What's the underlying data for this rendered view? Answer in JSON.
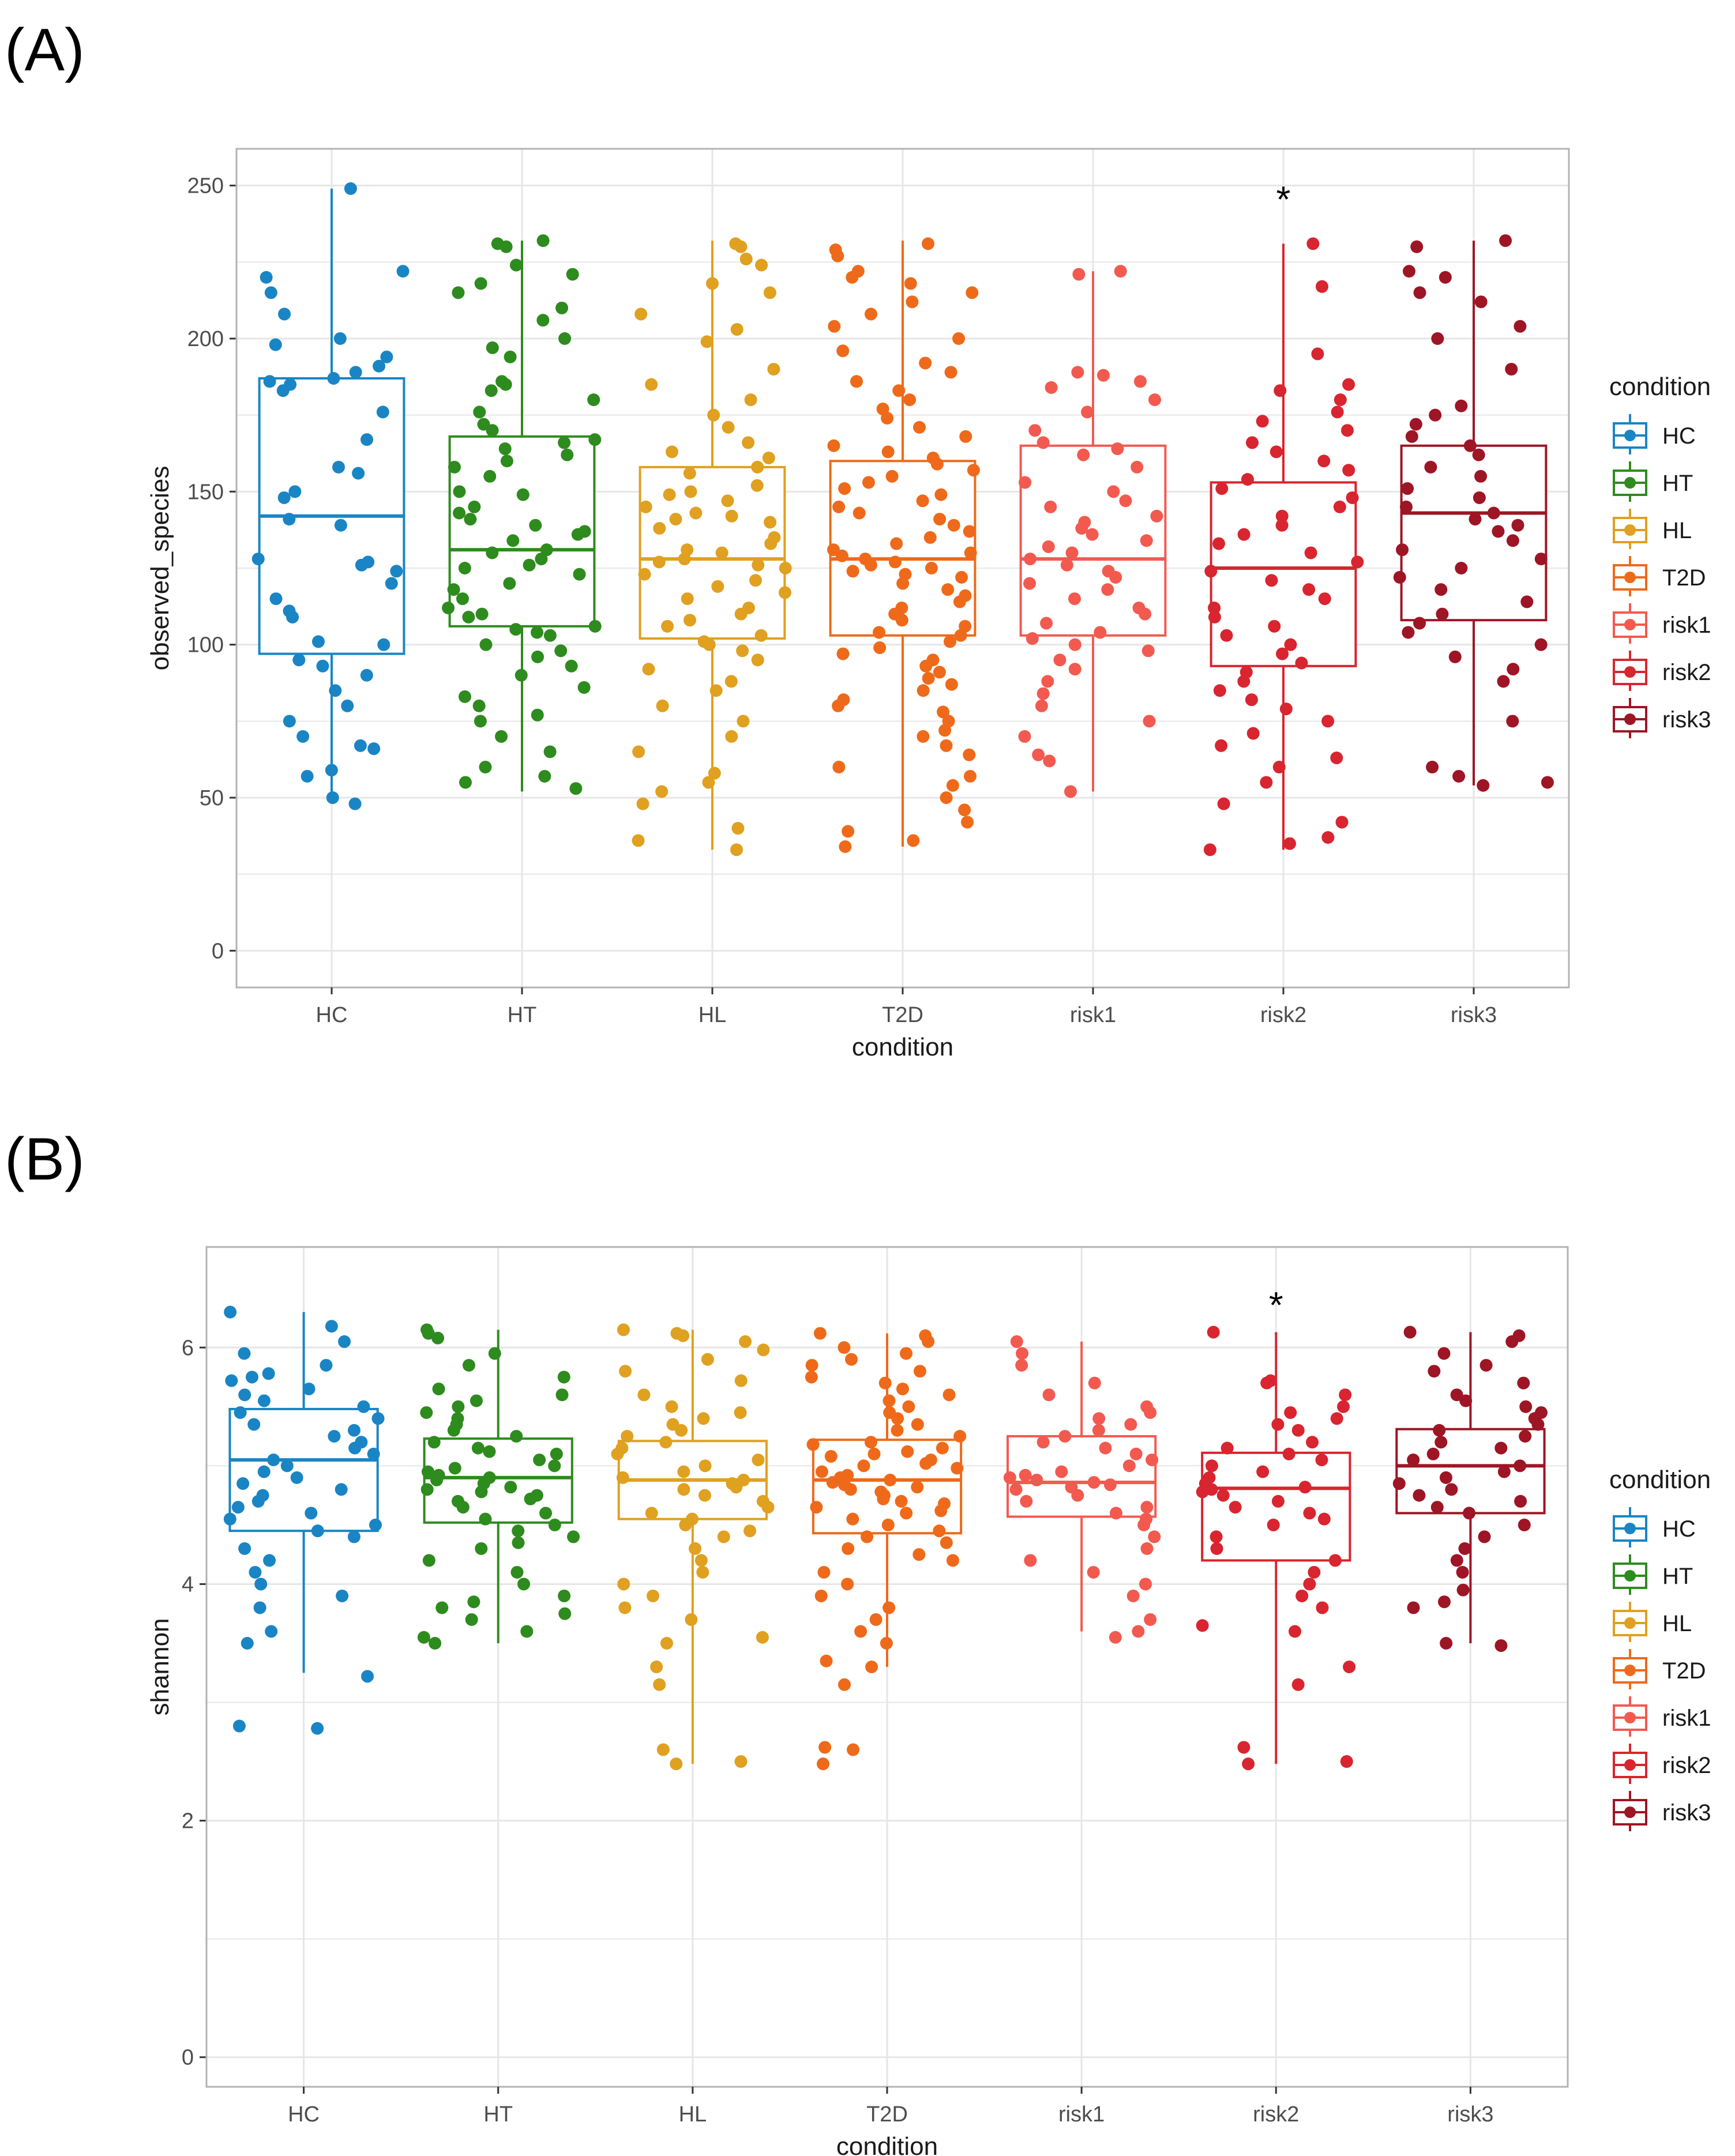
{
  "figure": {
    "panels": [
      "(A)",
      "(B)"
    ]
  },
  "legend": {
    "title": "condition"
  },
  "colors": {
    "HC": "#1a85c4",
    "HT": "#2e8b1e",
    "HL": "#e0a020",
    "T2D": "#ee6a1a",
    "risk1": "#f25a50",
    "risk2": "#d82530",
    "risk3": "#9e1525",
    "grid": "#e6e6e6",
    "panel_border": "#b3b3b3"
  },
  "chart_data": [
    {
      "type": "boxplot",
      "panel": "(A)",
      "xlabel": "condition",
      "ylabel": "observed_species",
      "categories": [
        "HC",
        "HT",
        "HL",
        "T2D",
        "risk1",
        "risk2",
        "risk3"
      ],
      "ylim": [
        -12,
        262
      ],
      "yticks": [
        0,
        50,
        100,
        150,
        200,
        250
      ],
      "grid": true,
      "legend_position": "right",
      "annotations": [
        {
          "category": "risk2",
          "y": 247,
          "text": "*"
        }
      ],
      "series": [
        {
          "name": "HC",
          "min": 48,
          "q1": 97,
          "median": 142,
          "q3": 187,
          "max": 249,
          "points": [
            249,
            222,
            220,
            215,
            208,
            200,
            198,
            194,
            191,
            189,
            187,
            186,
            185,
            183,
            176,
            167,
            158,
            156,
            150,
            148,
            141,
            139,
            128,
            127,
            126,
            124,
            120,
            115,
            111,
            109,
            101,
            100,
            95,
            93,
            90,
            85,
            80,
            75,
            70,
            67,
            66,
            59,
            57,
            50,
            48
          ]
        },
        {
          "name": "HT",
          "min": 52,
          "q1": 106,
          "median": 131,
          "q3": 168,
          "max": 232,
          "points": [
            232,
            231,
            230,
            224,
            221,
            218,
            215,
            210,
            206,
            200,
            197,
            194,
            186,
            185,
            183,
            180,
            176,
            172,
            170,
            167,
            166,
            164,
            162,
            160,
            158,
            155,
            150,
            149,
            145,
            143,
            141,
            139,
            137,
            136,
            134,
            131,
            130,
            128,
            126,
            125,
            123,
            120,
            118,
            115,
            112,
            110,
            109,
            106,
            105,
            104,
            103,
            100,
            98,
            96,
            93,
            90,
            86,
            83,
            80,
            77,
            75,
            70,
            65,
            60,
            57,
            55,
            53
          ]
        },
        {
          "name": "HL",
          "min": 33,
          "q1": 102,
          "median": 128,
          "q3": 158,
          "max": 232,
          "points": [
            231,
            230,
            226,
            224,
            218,
            215,
            208,
            203,
            199,
            190,
            185,
            180,
            175,
            171,
            166,
            163,
            161,
            158,
            156,
            152,
            150,
            149,
            147,
            145,
            143,
            142,
            141,
            140,
            138,
            135,
            133,
            131,
            130,
            128,
            127,
            126,
            125,
            123,
            121,
            119,
            117,
            115,
            112,
            110,
            108,
            106,
            103,
            101,
            100,
            98,
            95,
            92,
            88,
            85,
            80,
            75,
            70,
            65,
            58,
            55,
            52,
            48,
            40,
            36,
            33
          ]
        },
        {
          "name": "T2D",
          "min": 34,
          "q1": 103,
          "median": 128,
          "q3": 160,
          "max": 232,
          "points": [
            231,
            229,
            227,
            222,
            220,
            218,
            215,
            212,
            208,
            204,
            200,
            196,
            192,
            189,
            186,
            183,
            180,
            177,
            174,
            171,
            168,
            165,
            163,
            161,
            159,
            157,
            155,
            153,
            151,
            149,
            147,
            145,
            143,
            141,
            139,
            137,
            135,
            133,
            131,
            130,
            129,
            128,
            127,
            126,
            125,
            124,
            123,
            122,
            120,
            118,
            116,
            114,
            112,
            110,
            108,
            106,
            104,
            103,
            101,
            99,
            97,
            95,
            93,
            91,
            89,
            87,
            85,
            82,
            80,
            78,
            75,
            72,
            70,
            67,
            64,
            60,
            57,
            54,
            50,
            46,
            42,
            39,
            36,
            34
          ]
        },
        {
          "name": "risk1",
          "min": 52,
          "q1": 103,
          "median": 128,
          "q3": 165,
          "max": 222,
          "points": [
            222,
            221,
            189,
            188,
            186,
            184,
            180,
            176,
            170,
            166,
            164,
            162,
            158,
            153,
            150,
            147,
            145,
            142,
            140,
            138,
            136,
            134,
            132,
            130,
            128,
            126,
            124,
            122,
            120,
            118,
            115,
            112,
            110,
            107,
            104,
            102,
            100,
            98,
            95,
            92,
            88,
            84,
            80,
            75,
            70,
            64,
            62,
            52
          ]
        },
        {
          "name": "risk2",
          "min": 33,
          "q1": 93,
          "median": 125,
          "q3": 153,
          "max": 231,
          "points": [
            231,
            217,
            195,
            185,
            183,
            180,
            176,
            173,
            170,
            166,
            163,
            160,
            157,
            154,
            151,
            148,
            145,
            142,
            139,
            136,
            133,
            130,
            127,
            124,
            121,
            118,
            115,
            112,
            109,
            106,
            103,
            100,
            97,
            94,
            91,
            88,
            85,
            82,
            79,
            75,
            71,
            67,
            63,
            60,
            55,
            48,
            42,
            37,
            35,
            33
          ]
        },
        {
          "name": "risk3",
          "min": 54,
          "q1": 108,
          "median": 143,
          "q3": 165,
          "max": 232,
          "points": [
            232,
            230,
            222,
            220,
            215,
            212,
            204,
            200,
            190,
            178,
            175,
            172,
            168,
            165,
            162,
            158,
            155,
            151,
            148,
            145,
            143,
            141,
            139,
            137,
            134,
            131,
            128,
            125,
            122,
            118,
            114,
            110,
            107,
            104,
            100,
            96,
            92,
            88,
            75,
            60,
            57,
            55,
            54
          ]
        }
      ]
    },
    {
      "type": "boxplot",
      "panel": "(B)",
      "xlabel": "condition",
      "ylabel": "shannon",
      "categories": [
        "HC",
        "HT",
        "HL",
        "T2D",
        "risk1",
        "risk2",
        "risk3"
      ],
      "ylim": [
        -0.25,
        6.85
      ],
      "yticks": [
        0,
        2,
        4,
        6
      ],
      "grid": true,
      "legend_position": "right",
      "annotations": [
        {
          "category": "risk2",
          "y": 6.4,
          "text": "*"
        }
      ],
      "series": [
        {
          "name": "HC",
          "min": 3.25,
          "q1": 4.45,
          "median": 5.05,
          "q3": 5.48,
          "max": 6.3,
          "points": [
            6.3,
            6.18,
            6.05,
            5.95,
            5.85,
            5.78,
            5.75,
            5.72,
            5.65,
            5.6,
            5.55,
            5.5,
            5.45,
            5.4,
            5.35,
            5.3,
            5.25,
            5.2,
            5.15,
            5.1,
            5.05,
            5.0,
            4.95,
            4.9,
            4.85,
            4.8,
            4.75,
            4.7,
            4.65,
            4.6,
            4.55,
            4.5,
            4.45,
            4.4,
            4.3,
            4.2,
            4.1,
            4.0,
            3.9,
            3.8,
            3.6,
            3.5,
            3.22,
            2.8,
            2.78
          ]
        },
        {
          "name": "HT",
          "min": 3.5,
          "q1": 4.52,
          "median": 4.9,
          "q3": 5.23,
          "max": 6.15,
          "points": [
            6.15,
            6.12,
            6.08,
            5.95,
            5.85,
            5.75,
            5.65,
            5.6,
            5.55,
            5.5,
            5.45,
            5.4,
            5.35,
            5.3,
            5.25,
            5.2,
            5.15,
            5.12,
            5.1,
            5.05,
            5.0,
            4.98,
            4.95,
            4.92,
            4.9,
            4.88,
            4.85,
            4.82,
            4.8,
            4.78,
            4.75,
            4.72,
            4.7,
            4.65,
            4.6,
            4.55,
            4.5,
            4.45,
            4.4,
            4.35,
            4.3,
            4.2,
            4.1,
            4.0,
            3.9,
            3.85,
            3.8,
            3.75,
            3.7,
            3.6,
            3.55,
            3.5
          ]
        },
        {
          "name": "HL",
          "min": 2.48,
          "q1": 4.55,
          "median": 4.88,
          "q3": 5.21,
          "max": 6.15,
          "points": [
            6.15,
            6.12,
            6.1,
            6.05,
            5.98,
            5.9,
            5.8,
            5.72,
            5.6,
            5.5,
            5.45,
            5.4,
            5.35,
            5.3,
            5.25,
            5.2,
            5.15,
            5.1,
            5.05,
            5.0,
            4.95,
            4.9,
            4.88,
            4.85,
            4.82,
            4.8,
            4.75,
            4.7,
            4.65,
            4.6,
            4.55,
            4.5,
            4.45,
            4.4,
            4.3,
            4.2,
            4.1,
            4.0,
            3.9,
            3.8,
            3.7,
            3.55,
            3.5,
            3.3,
            3.15,
            2.6,
            2.5,
            2.48
          ]
        },
        {
          "name": "T2D",
          "min": 3.3,
          "q1": 4.43,
          "median": 4.88,
          "q3": 5.22,
          "max": 6.12,
          "points": [
            6.12,
            6.1,
            6.05,
            6.0,
            5.95,
            5.9,
            5.85,
            5.8,
            5.75,
            5.7,
            5.65,
            5.6,
            5.55,
            5.5,
            5.45,
            5.4,
            5.35,
            5.3,
            5.25,
            5.2,
            5.18,
            5.15,
            5.12,
            5.1,
            5.08,
            5.05,
            5.02,
            5.0,
            4.98,
            4.95,
            4.92,
            4.9,
            4.88,
            4.86,
            4.84,
            4.82,
            4.8,
            4.78,
            4.75,
            4.72,
            4.7,
            4.68,
            4.65,
            4.62,
            4.6,
            4.55,
            4.5,
            4.45,
            4.4,
            4.35,
            4.3,
            4.25,
            4.2,
            4.1,
            4.0,
            3.9,
            3.8,
            3.7,
            3.6,
            3.5,
            3.35,
            3.3,
            3.15,
            2.62,
            2.6,
            2.48
          ]
        },
        {
          "name": "risk1",
          "min": 3.6,
          "q1": 4.57,
          "median": 4.86,
          "q3": 5.25,
          "max": 6.05,
          "points": [
            6.05,
            5.95,
            5.85,
            5.7,
            5.6,
            5.5,
            5.45,
            5.4,
            5.35,
            5.3,
            5.25,
            5.2,
            5.15,
            5.1,
            5.05,
            5.0,
            4.95,
            4.92,
            4.9,
            4.88,
            4.86,
            4.84,
            4.82,
            4.8,
            4.75,
            4.7,
            4.65,
            4.6,
            4.55,
            4.5,
            4.4,
            4.3,
            4.2,
            4.1,
            4.0,
            3.9,
            3.7,
            3.6,
            3.55
          ]
        },
        {
          "name": "risk2",
          "min": 2.48,
          "q1": 4.2,
          "median": 4.81,
          "q3": 5.11,
          "max": 6.13,
          "points": [
            6.13,
            5.72,
            5.7,
            5.6,
            5.5,
            5.45,
            5.4,
            5.35,
            5.3,
            5.2,
            5.15,
            5.1,
            5.05,
            5.0,
            4.95,
            4.9,
            4.85,
            4.82,
            4.8,
            4.78,
            4.75,
            4.7,
            4.65,
            4.6,
            4.55,
            4.5,
            4.4,
            4.3,
            4.2,
            4.1,
            4.0,
            3.9,
            3.8,
            3.65,
            3.6,
            3.3,
            3.15,
            2.62,
            2.5,
            2.48
          ]
        },
        {
          "name": "risk3",
          "min": 3.5,
          "q1": 4.6,
          "median": 5.0,
          "q3": 5.31,
          "max": 6.13,
          "points": [
            6.13,
            6.1,
            6.05,
            5.95,
            5.85,
            5.8,
            5.7,
            5.6,
            5.55,
            5.5,
            5.45,
            5.4,
            5.35,
            5.3,
            5.25,
            5.2,
            5.15,
            5.1,
            5.05,
            5.0,
            4.95,
            4.9,
            4.85,
            4.8,
            4.75,
            4.7,
            4.65,
            4.6,
            4.5,
            4.4,
            4.3,
            4.2,
            4.1,
            3.95,
            3.85,
            3.8,
            3.5,
            3.48
          ]
        }
      ]
    }
  ]
}
